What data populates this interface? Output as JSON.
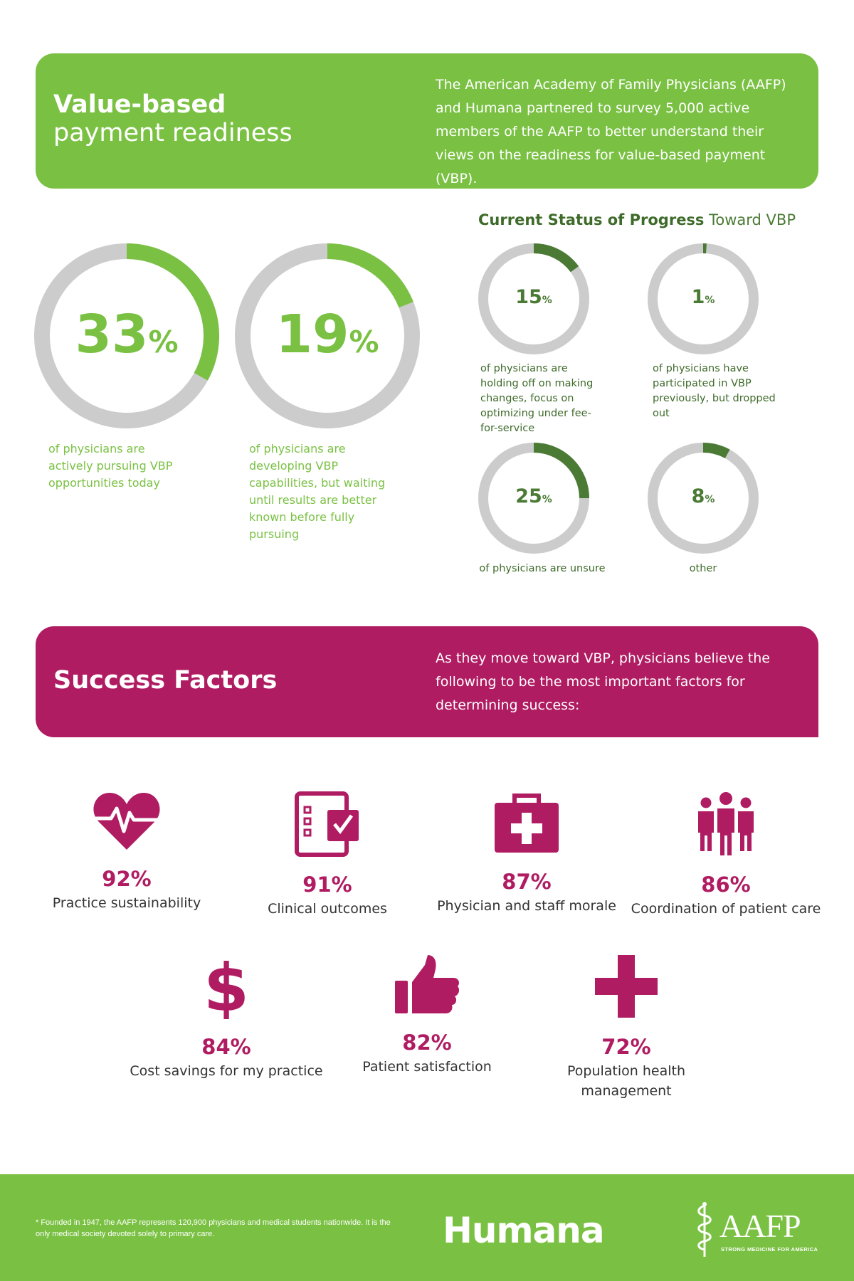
{
  "colors": {
    "green": "#7ac143",
    "dark_green": "#4a7a34",
    "magenta": "#b01c62",
    "ring_gray": "#cccccc"
  },
  "header": {
    "title_bold": "Value-based",
    "title_light": "payment readiness",
    "description": "The American Academy of Family Physicians (AAFP) and Humana partnered to survey 5,000 active members of the AAFP to better understand their views on the readiness for value-based payment (VBP)."
  },
  "main_stats": [
    {
      "value": 33,
      "number": "33",
      "unit": "%",
      "caption": "of physicians are actively pursuing VBP opportunities today"
    },
    {
      "value": 19,
      "number": "19",
      "unit": "%",
      "caption": "of physicians are developing VBP capabilities, but waiting until results are better known before fully pursuing"
    }
  ],
  "status": {
    "heading_bold": "Current Status of Progress",
    "heading_light": "Toward VBP",
    "items": [
      {
        "value": 15,
        "number": "15",
        "unit": "%",
        "caption": "of physicians are holding off on making changes, focus on optimizing under fee-for-service"
      },
      {
        "value": 1,
        "number": "1",
        "unit": "%",
        "caption": "of physicians have participated in VBP previously, but dropped out"
      },
      {
        "value": 25,
        "number": "25",
        "unit": "%",
        "caption": "of physicians are unsure"
      },
      {
        "value": 8,
        "number": "8",
        "unit": "%",
        "caption": "other"
      }
    ]
  },
  "success": {
    "title": "Success Factors",
    "description": "As they move toward VBP, physicians believe the following to be the most important factors for determining success:",
    "factors": [
      {
        "icon": "heart-pulse-icon",
        "pct": "92%",
        "label": "Practice sustainability"
      },
      {
        "icon": "checklist-icon",
        "pct": "91%",
        "label": "Clinical outcomes"
      },
      {
        "icon": "medical-kit-icon",
        "pct": "87%",
        "label": "Physician and staff morale"
      },
      {
        "icon": "people-group-icon",
        "pct": "86%",
        "label": "Coordination of patient care"
      },
      {
        "icon": "dollar-icon",
        "pct": "84%",
        "label": "Cost savings for my practice"
      },
      {
        "icon": "thumbs-up-icon",
        "pct": "82%",
        "label": "Patient satisfaction"
      },
      {
        "icon": "plus-cross-icon",
        "pct": "72%",
        "label": "Population health management"
      }
    ]
  },
  "footer": {
    "footnote": "* Founded in 1947, the AAFP represents 120,900 physicians and medical students nationwide. It is the only medical society devoted solely to primary care.",
    "humana": "Humana",
    "aafp": "AAFP",
    "aafp_tagline": "STRONG MEDICINE FOR AMERICA"
  }
}
